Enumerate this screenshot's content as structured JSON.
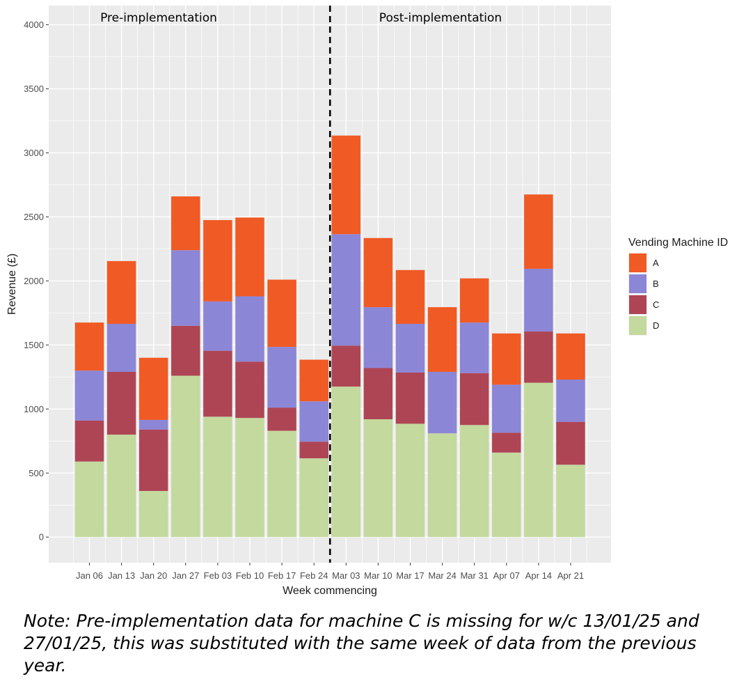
{
  "chart_data": {
    "type": "bar",
    "stacked": true,
    "title": "",
    "xlabel": "Week commencing",
    "ylabel": "Revenue (£)",
    "ylim": [
      -200,
      4150
    ],
    "yticks": [
      0,
      500,
      1000,
      1500,
      2000,
      2500,
      3000,
      3500,
      4000
    ],
    "categories": [
      "Jan 06",
      "Jan 13",
      "Jan 20",
      "Jan 27",
      "Feb 03",
      "Feb 10",
      "Feb 17",
      "Feb 24",
      "Mar 03",
      "Mar 10",
      "Mar 17",
      "Mar 24",
      "Mar 31",
      "Apr 07",
      "Apr 14",
      "Apr 21"
    ],
    "series": [
      {
        "name": "D",
        "color": "#c4d99e",
        "values": [
          590,
          800,
          360,
          1260,
          940,
          930,
          830,
          615,
          1175,
          920,
          885,
          810,
          875,
          660,
          1205,
          565
        ]
      },
      {
        "name": "C",
        "color": "#ae4555",
        "values": [
          320,
          490,
          480,
          390,
          515,
          440,
          180,
          130,
          320,
          400,
          400,
          0,
          405,
          155,
          400,
          335
        ]
      },
      {
        "name": "B",
        "color": "#8c86d7",
        "values": [
          390,
          375,
          75,
          590,
          385,
          510,
          475,
          315,
          870,
          475,
          380,
          480,
          395,
          375,
          490,
          330
        ]
      },
      {
        "name": "A",
        "color": "#f05a24",
        "values": [
          375,
          490,
          485,
          420,
          635,
          615,
          525,
          325,
          770,
          540,
          420,
          505,
          345,
          400,
          580,
          360
        ]
      }
    ],
    "divider_after_category": "Feb 24",
    "annotations": [
      "Pre-implementation",
      "Post-implementation"
    ],
    "legend": {
      "title": "Vending Machine ID",
      "position": "right",
      "order": [
        "A",
        "B",
        "C",
        "D"
      ]
    }
  },
  "note": "Note: Pre-implementation data for machine C is missing for w/c 13/01/25 and 27/01/25, this was substituted with the same week of data from the previous year.",
  "colors": {
    "panel": "#ebebeb",
    "grid": "#ffffff",
    "divider": "#000000"
  }
}
